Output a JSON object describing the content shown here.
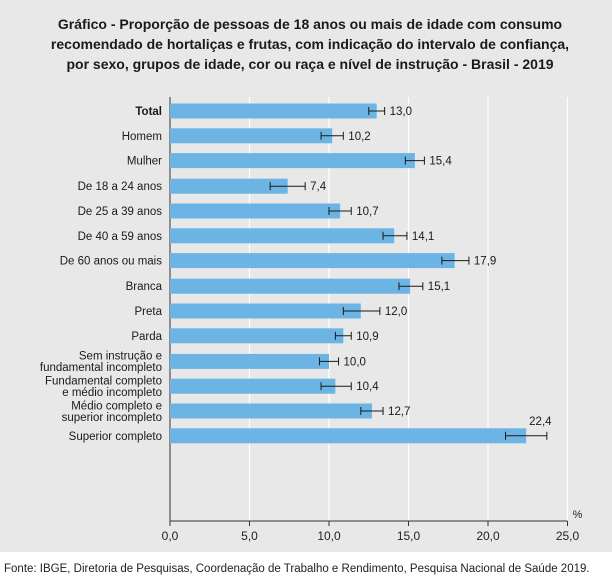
{
  "title_lines": [
    "Gráfico - Proporção de pessoas de 18 anos ou mais de idade com consumo",
    "recomendado de hortaliças e frutas, com indicação do intervalo de confiança,",
    "por sexo, grupos de idade, cor ou raça e nível de instrução - Brasil - 2019"
  ],
  "source": "Fonte: IBGE, Diretoria de Pesquisas, Coordenação de Trabalho e Rendimento, Pesquisa Nacional de Saúde 2019.",
  "chart_data": {
    "type": "bar",
    "orientation": "horizontal",
    "title": "Gráfico - Proporção de pessoas de 18 anos ou mais de idade com consumo recomendado de hortaliças e frutas, com indicação do intervalo de confiança, por sexo, grupos de idade, cor ou raça e nível de instrução - Brasil - 2019",
    "xlabel": "%",
    "xlim": [
      0,
      25
    ],
    "xticks": [
      "0,0",
      "5,0",
      "10,0",
      "15,0",
      "20,0",
      "25,0"
    ],
    "bar_color": "#6cb4e4",
    "groups": [
      {
        "name": "total_sexo",
        "items": [
          {
            "label": [
              "Total"
            ],
            "value": 13.0,
            "value_label": "13,0",
            "ci": [
              12.5,
              13.5
            ]
          },
          {
            "label": [
              "Homem"
            ],
            "value": 10.2,
            "value_label": "10,2",
            "ci": [
              9.5,
              10.9
            ]
          },
          {
            "label": [
              "Mulher"
            ],
            "value": 15.4,
            "value_label": "15,4",
            "ci": [
              14.8,
              16.0
            ]
          }
        ]
      },
      {
        "name": "idade",
        "items": [
          {
            "label": [
              "De 18 a 24 anos"
            ],
            "value": 7.4,
            "value_label": "7,4",
            "ci": [
              6.3,
              8.5
            ]
          },
          {
            "label": [
              "De 25 a 39 anos"
            ],
            "value": 10.7,
            "value_label": "10,7",
            "ci": [
              10.0,
              11.4
            ]
          },
          {
            "label": [
              "De 40 a 59 anos"
            ],
            "value": 14.1,
            "value_label": "14,1",
            "ci": [
              13.4,
              14.9
            ]
          },
          {
            "label": [
              "De 60 anos ou mais"
            ],
            "value": 17.9,
            "value_label": "17,9",
            "ci": [
              17.1,
              18.8
            ]
          }
        ]
      },
      {
        "name": "cor_raca",
        "items": [
          {
            "label": [
              "Branca"
            ],
            "value": 15.1,
            "value_label": "15,1",
            "ci": [
              14.4,
              15.9
            ]
          },
          {
            "label": [
              "Preta"
            ],
            "value": 12.0,
            "value_label": "12,0",
            "ci": [
              10.9,
              13.2
            ]
          },
          {
            "label": [
              "Parda"
            ],
            "value": 10.9,
            "value_label": "10,9",
            "ci": [
              10.4,
              11.4
            ]
          }
        ]
      },
      {
        "name": "instrucao",
        "items": [
          {
            "label": [
              "Sem instrução e",
              "fundamental incompleto"
            ],
            "value": 10.0,
            "value_label": "10,0",
            "ci": [
              9.4,
              10.6
            ]
          },
          {
            "label": [
              "Fundamental completo",
              "e médio incompleto"
            ],
            "value": 10.4,
            "value_label": "10,4",
            "ci": [
              9.5,
              11.4
            ]
          },
          {
            "label": [
              "Médio completo e",
              "superior incompleto"
            ],
            "value": 12.7,
            "value_label": "12,7",
            "ci": [
              12.0,
              13.4
            ]
          },
          {
            "label": [
              "Superior completo"
            ],
            "value": 22.4,
            "value_label": "22,4",
            "ci": [
              21.1,
              23.7
            ]
          }
        ]
      }
    ]
  }
}
